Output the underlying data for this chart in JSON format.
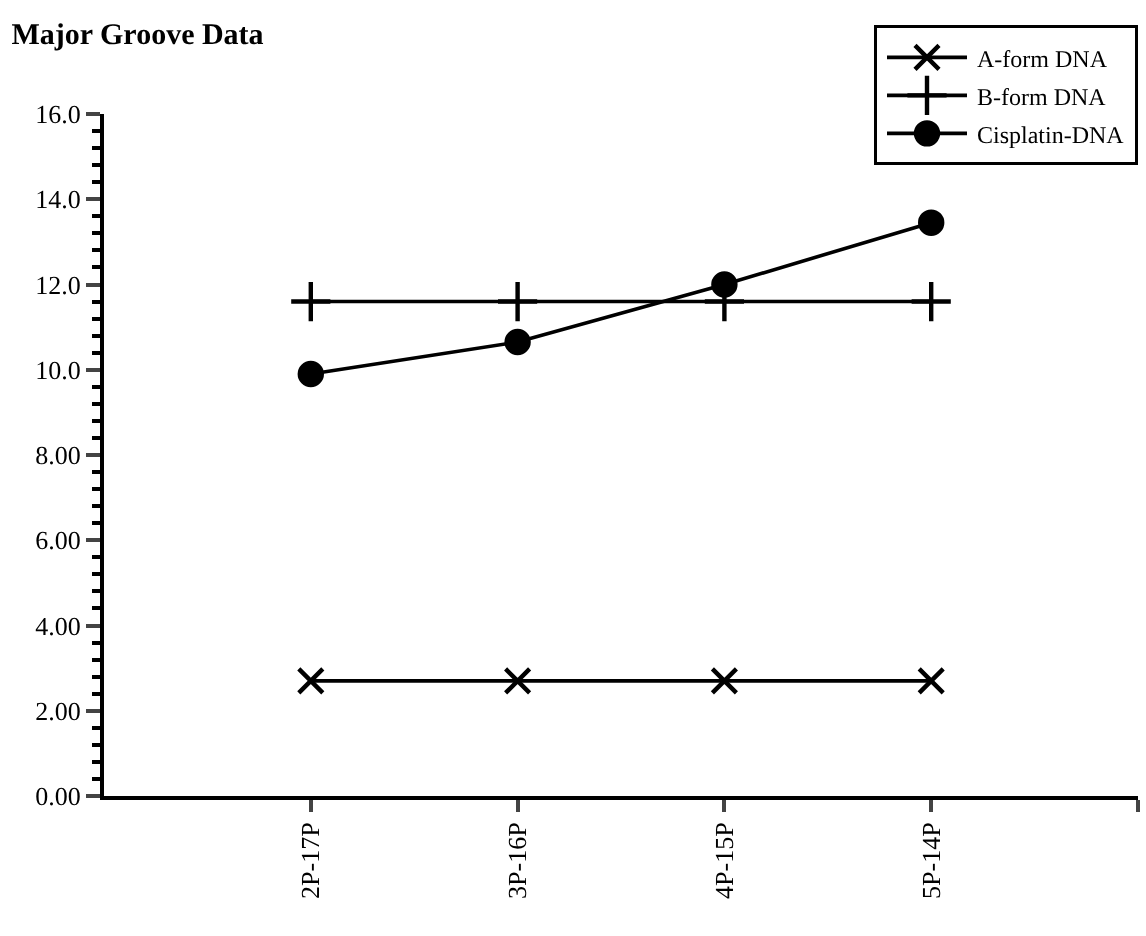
{
  "chart_data": {
    "type": "line",
    "title": "Major Groove Data",
    "categories": [
      "2P-17P",
      "3P-16P",
      "4P-15P",
      "5P-14P"
    ],
    "series": [
      {
        "name": "A-form DNA",
        "color": "#000000",
        "marker": "cross",
        "values": [
          2.7,
          2.7,
          2.7,
          2.7
        ]
      },
      {
        "name": "B-form DNA",
        "color": "#000000",
        "marker": "plus",
        "values": [
          11.6,
          11.6,
          11.6,
          11.6
        ]
      },
      {
        "name": "Cisplatin-DNA",
        "color": "#000000",
        "marker": "circle",
        "values": [
          9.9,
          10.65,
          12.0,
          13.45
        ]
      }
    ],
    "ylim": [
      0,
      16
    ],
    "yticks": [
      {
        "value": 0,
        "label": "0.00"
      },
      {
        "value": 2,
        "label": "2.00"
      },
      {
        "value": 4,
        "label": "4.00"
      },
      {
        "value": 6,
        "label": "6.00"
      },
      {
        "value": 8,
        "label": "8.00"
      },
      {
        "value": 10,
        "label": "10.0"
      },
      {
        "value": 12,
        "label": "12.0"
      },
      {
        "value": 14,
        "label": "14.0"
      },
      {
        "value": 16,
        "label": "16.0"
      }
    ],
    "legend": "top right",
    "line_style": "solid"
  }
}
